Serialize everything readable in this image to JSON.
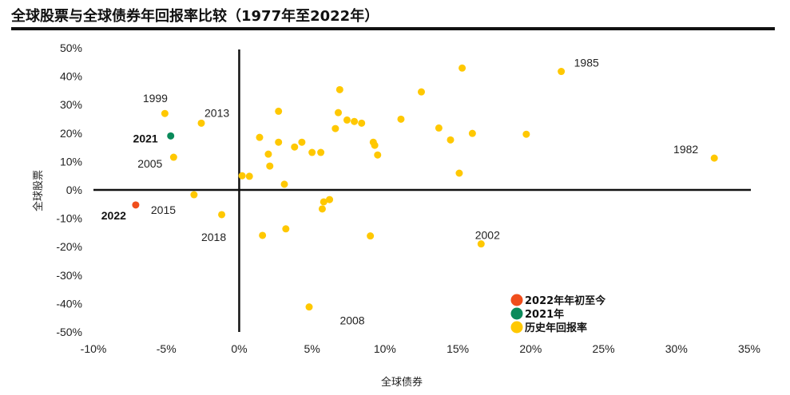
{
  "title": "全球股票与全球债券年回报率比较（1977年至2022年）",
  "chart_data": {
    "type": "scatter",
    "title": "全球股票与全球债券年回报率比较（1977年至2022年）",
    "xlabel": "全球债券",
    "ylabel": "全球股票",
    "xlim": [
      -10,
      35
    ],
    "ylim": [
      -50,
      50
    ],
    "xticks": [
      -10,
      -5,
      0,
      5,
      10,
      15,
      20,
      25,
      30,
      35
    ],
    "yticks": [
      50,
      40,
      30,
      20,
      10,
      0,
      -10,
      -20,
      -30,
      -40,
      -50
    ],
    "tick_suffix": "%",
    "legend_position": "bottom-right",
    "legend": [
      {
        "name": "2022年年初至今",
        "color": "#F04E1C"
      },
      {
        "name": "2021年",
        "color": "#0A8A5A"
      },
      {
        "name": "历史年回报率",
        "color": "#FFC800"
      }
    ],
    "points": [
      {
        "x": 15.3,
        "y": 42.9,
        "s": 2
      },
      {
        "x": 22.1,
        "y": 41.7,
        "s": 2,
        "label": "1985"
      },
      {
        "x": 6.9,
        "y": 35.3,
        "s": 2
      },
      {
        "x": 12.5,
        "y": 34.5,
        "s": 2
      },
      {
        "x": 2.7,
        "y": 27.7,
        "s": 2
      },
      {
        "x": 6.8,
        "y": 27.2,
        "s": 2
      },
      {
        "x": -5.1,
        "y": 26.9,
        "s": 2,
        "label": "1999"
      },
      {
        "x": -2.6,
        "y": 23.5,
        "s": 2,
        "label": "2013"
      },
      {
        "x": 7.4,
        "y": 24.6,
        "s": 2
      },
      {
        "x": 7.9,
        "y": 24.1,
        "s": 2
      },
      {
        "x": 8.4,
        "y": 23.5,
        "s": 2
      },
      {
        "x": 11.1,
        "y": 24.9,
        "s": 2
      },
      {
        "x": 6.6,
        "y": 21.6,
        "s": 2
      },
      {
        "x": 13.7,
        "y": 21.8,
        "s": 2
      },
      {
        "x": 16.0,
        "y": 19.9,
        "s": 2
      },
      {
        "x": 19.7,
        "y": 19.6,
        "s": 2
      },
      {
        "x": -4.7,
        "y": 19.0,
        "s": 1,
        "label": "2021"
      },
      {
        "x": 14.5,
        "y": 17.6,
        "s": 2
      },
      {
        "x": 1.4,
        "y": 18.5,
        "s": 2
      },
      {
        "x": 2.7,
        "y": 16.8,
        "s": 2
      },
      {
        "x": 4.3,
        "y": 16.8,
        "s": 2
      },
      {
        "x": 9.2,
        "y": 16.8,
        "s": 2
      },
      {
        "x": 9.3,
        "y": 15.7,
        "s": 2
      },
      {
        "x": 3.8,
        "y": 15.1,
        "s": 2
      },
      {
        "x": 5.0,
        "y": 13.2,
        "s": 2
      },
      {
        "x": 5.6,
        "y": 13.2,
        "s": 2
      },
      {
        "x": 2.0,
        "y": 12.6,
        "s": 2
      },
      {
        "x": 9.5,
        "y": 12.3,
        "s": 2
      },
      {
        "x": 32.6,
        "y": 11.2,
        "s": 2,
        "label": "1982"
      },
      {
        "x": -4.5,
        "y": 11.5,
        "s": 2,
        "label": "2005"
      },
      {
        "x": 2.1,
        "y": 8.4,
        "s": 2
      },
      {
        "x": 15.1,
        "y": 5.9,
        "s": 2
      },
      {
        "x": 0.2,
        "y": 5.0,
        "s": 2
      },
      {
        "x": 0.7,
        "y": 4.8,
        "s": 2
      },
      {
        "x": 3.1,
        "y": 2.0,
        "s": 2
      },
      {
        "x": -3.1,
        "y": -1.7,
        "s": 2,
        "label": "2015"
      },
      {
        "x": 6.2,
        "y": -3.4,
        "s": 2
      },
      {
        "x": 5.8,
        "y": -4.2,
        "s": 2
      },
      {
        "x": 5.7,
        "y": -6.7,
        "s": 2
      },
      {
        "x": -7.1,
        "y": -5.3,
        "s": 0,
        "label": "2022"
      },
      {
        "x": -1.2,
        "y": -8.7,
        "s": 2,
        "label": "2018"
      },
      {
        "x": 3.2,
        "y": -13.7,
        "s": 2
      },
      {
        "x": 1.6,
        "y": -16.0,
        "s": 2
      },
      {
        "x": 9.0,
        "y": -16.2,
        "s": 2
      },
      {
        "x": 16.6,
        "y": -19.0,
        "s": 2,
        "label": "2002"
      },
      {
        "x": 4.8,
        "y": -41.2,
        "s": 2,
        "label": "2008"
      }
    ]
  }
}
